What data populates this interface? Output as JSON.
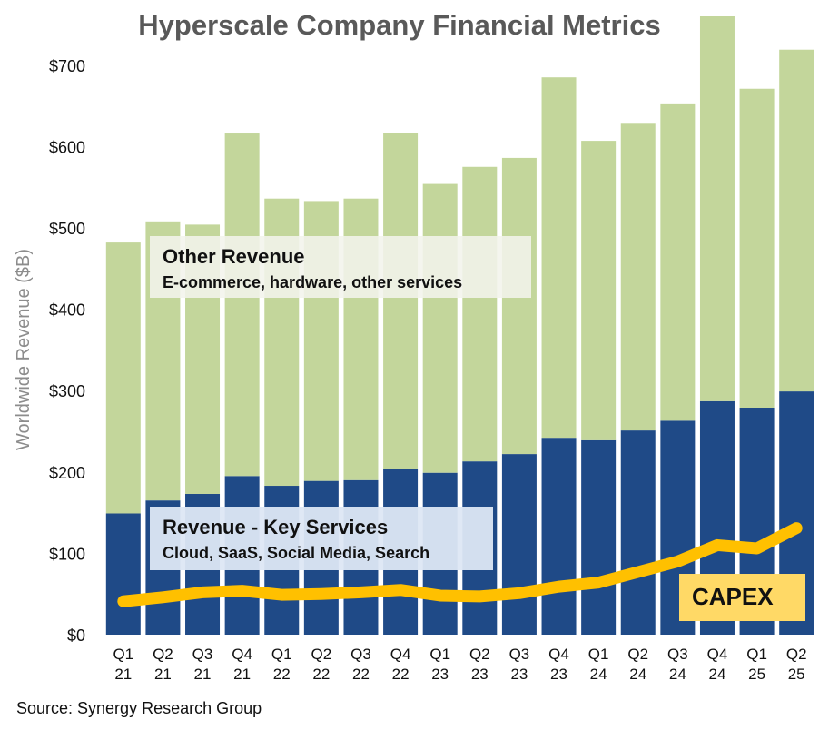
{
  "chart_data": {
    "type": "bar",
    "title": "Hyperscale Company Financial Metrics",
    "y_label": "Worldwide Revenue ($B)",
    "source": "Source: Synergy Research Group",
    "categories": [
      "Q1 21",
      "Q2 21",
      "Q3 21",
      "Q4 21",
      "Q1 22",
      "Q2 22",
      "Q3 22",
      "Q4 22",
      "Q1 23",
      "Q2 23",
      "Q3 23",
      "Q4 23",
      "Q1 24",
      "Q2 24",
      "Q3 24",
      "Q4 24",
      "Q1 25",
      "Q2 25"
    ],
    "series": [
      {
        "name": "Revenue - Key Services",
        "description": "Cloud, SaaS, Social Media, Search",
        "color": "#1f4a87",
        "type": "bar",
        "values": [
          149,
          165,
          173,
          195,
          183,
          189,
          190,
          204,
          199,
          213,
          222,
          242,
          239,
          251,
          263,
          287,
          279,
          299
        ]
      },
      {
        "name": "Other Revenue",
        "description": "E-commerce, hardware, other services",
        "color": "#c3d69b",
        "type": "bar",
        "values": [
          333,
          343,
          331,
          421,
          353,
          344,
          346,
          413,
          355,
          362,
          364,
          443,
          368,
          377,
          390,
          473,
          392,
          420
        ]
      },
      {
        "name": "CAPEX",
        "color": "#ffc000",
        "type": "line",
        "values": [
          41,
          46,
          52,
          54,
          49,
          50,
          52,
          55,
          48,
          47,
          51,
          59,
          64,
          77,
          90,
          110,
          106,
          131
        ]
      }
    ],
    "stacked": true,
    "ylim": [
      0,
      760
    ],
    "yticks": [
      {
        "value": 0,
        "label": "$0"
      },
      {
        "value": 100,
        "label": "$100"
      },
      {
        "value": 200,
        "label": "$200"
      },
      {
        "value": 300,
        "label": "$300"
      },
      {
        "value": 400,
        "label": "$400"
      },
      {
        "value": 500,
        "label": "$500"
      },
      {
        "value": 600,
        "label": "$600"
      },
      {
        "value": 700,
        "label": "$700"
      }
    ],
    "grid": false
  }
}
